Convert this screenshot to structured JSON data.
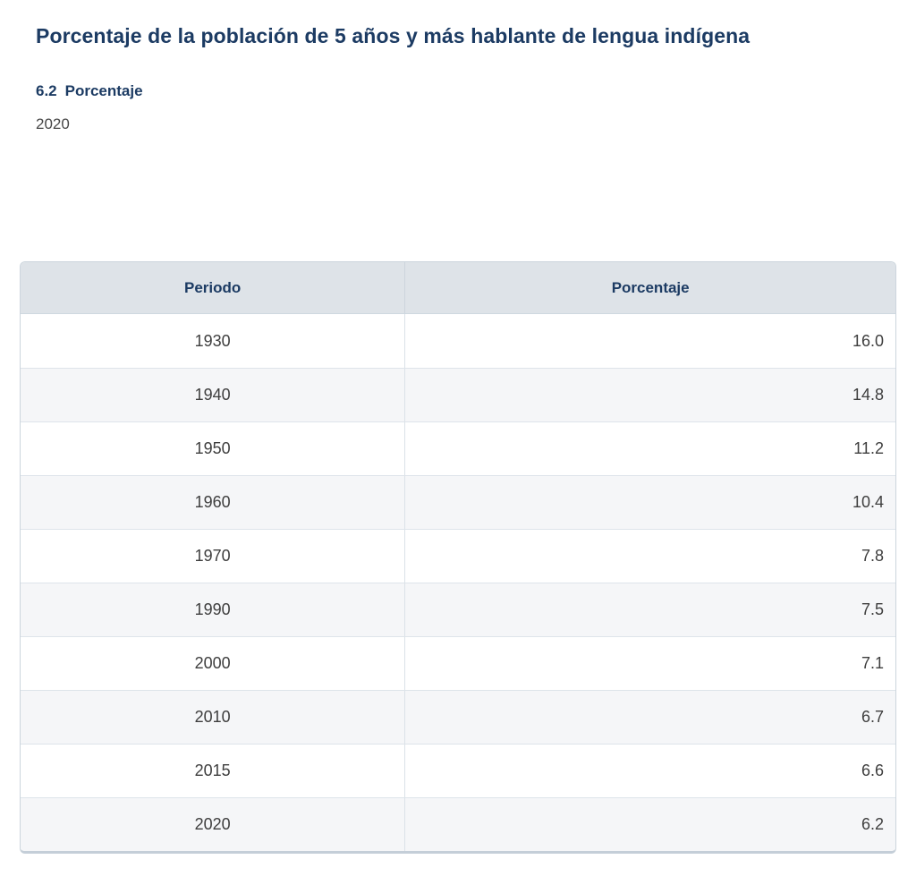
{
  "page": {
    "title": "Porcentaje de la población de 5 años y más hablante de lengua indígena",
    "subtitle_number": "6.2",
    "subtitle_label": "Porcentaje",
    "year": "2020"
  },
  "table": {
    "headers": {
      "period": "Periodo",
      "value": "Porcentaje"
    },
    "rows": [
      {
        "period": "1930",
        "value": "16.0"
      },
      {
        "period": "1940",
        "value": "14.8"
      },
      {
        "period": "1950",
        "value": "11.2"
      },
      {
        "period": "1960",
        "value": "10.4"
      },
      {
        "period": "1970",
        "value": "7.8"
      },
      {
        "period": "1990",
        "value": "7.5"
      },
      {
        "period": "2000",
        "value": "7.1"
      },
      {
        "period": "2010",
        "value": "6.7"
      },
      {
        "period": "2015",
        "value": "6.6"
      },
      {
        "period": "2020",
        "value": "6.2"
      }
    ]
  },
  "colors": {
    "title_navy": "#1c3b63",
    "header_bg": "#dee3e8",
    "stripe_bg": "#f5f6f8",
    "border": "#ccd5dd",
    "body_text": "#3e3e3e"
  },
  "chart_data": {
    "type": "table",
    "title": "Porcentaje de la población de 5 años y más hablante de lengua indígena",
    "subtitle": "6.2 Porcentaje",
    "reference_year": 2020,
    "columns": [
      "Periodo",
      "Porcentaje"
    ],
    "categories": [
      1930,
      1940,
      1950,
      1960,
      1970,
      1990,
      2000,
      2010,
      2015,
      2020
    ],
    "values": [
      16.0,
      14.8,
      11.2,
      10.4,
      7.8,
      7.5,
      7.1,
      6.7,
      6.6,
      6.2
    ]
  }
}
